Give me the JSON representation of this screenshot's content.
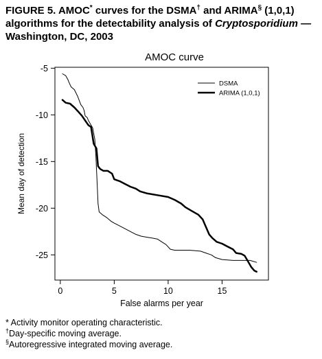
{
  "figure": {
    "title_part1": "FIGURE 5. AMOC",
    "title_sym1": "*",
    "title_part2": " curves for the DSMA",
    "title_sym2": "†",
    "title_part3": " and ARIMA",
    "title_sym3": "§",
    "title_part4": " (1,0,1) algorithms for the detectability analysis of ",
    "title_italic": "Cryptosporidium",
    "title_part5": " — Washington, DC, 2003"
  },
  "chart_data": {
    "type": "line",
    "title": "AMOC curve",
    "xlabel": "False alarms per year",
    "ylabel": "Mean day of detection",
    "xlim": [
      -0.5,
      19.3
    ],
    "ylim": [
      -27.7,
      -4.9
    ],
    "xticks": [
      0,
      5,
      10,
      15
    ],
    "yticks": [
      -5,
      -10,
      -15,
      -20,
      -25
    ],
    "grid": false,
    "legend": "top-right",
    "series": [
      {
        "name": "DSMA",
        "color": "#000000",
        "width": 1,
        "points": [
          [
            0.2,
            -5.6
          ],
          [
            0.5,
            -5.8
          ],
          [
            0.7,
            -6.2
          ],
          [
            0.8,
            -6.5
          ],
          [
            1.0,
            -7.0
          ],
          [
            1.3,
            -7.3
          ],
          [
            1.6,
            -8.0
          ],
          [
            1.9,
            -8.9
          ],
          [
            2.1,
            -9.2
          ],
          [
            2.2,
            -9.5
          ],
          [
            2.3,
            -10.1
          ],
          [
            2.5,
            -10.3
          ],
          [
            2.6,
            -10.6
          ],
          [
            2.8,
            -11.0
          ],
          [
            3.0,
            -11.4
          ],
          [
            3.1,
            -12.0
          ],
          [
            3.2,
            -12.6
          ],
          [
            3.3,
            -14.5
          ],
          [
            3.4,
            -17.0
          ],
          [
            3.5,
            -19.5
          ],
          [
            3.6,
            -20.4
          ],
          [
            3.9,
            -20.7
          ],
          [
            4.3,
            -21.0
          ],
          [
            4.7,
            -21.4
          ],
          [
            5.0,
            -21.6
          ],
          [
            5.5,
            -21.9
          ],
          [
            6.0,
            -22.2
          ],
          [
            6.5,
            -22.5
          ],
          [
            7.0,
            -22.8
          ],
          [
            7.5,
            -23.0
          ],
          [
            8.0,
            -23.1
          ],
          [
            8.5,
            -23.2
          ],
          [
            9.0,
            -23.3
          ],
          [
            9.4,
            -23.6
          ],
          [
            9.8,
            -23.9
          ],
          [
            10.2,
            -24.4
          ],
          [
            10.6,
            -24.5
          ],
          [
            11.0,
            -24.5
          ],
          [
            12.0,
            -24.5
          ],
          [
            13.0,
            -24.6
          ],
          [
            13.5,
            -24.8
          ],
          [
            14.0,
            -25.0
          ],
          [
            14.4,
            -25.3
          ],
          [
            15.0,
            -25.5
          ],
          [
            16.0,
            -25.6
          ],
          [
            17.0,
            -25.6
          ],
          [
            17.6,
            -25.6
          ],
          [
            18.2,
            -25.8
          ]
        ]
      },
      {
        "name": "ARIMA (1,0,1)",
        "color": "#000000",
        "width": 2.5,
        "points": [
          [
            0.2,
            -8.4
          ],
          [
            0.5,
            -8.7
          ],
          [
            0.9,
            -8.8
          ],
          [
            1.3,
            -9.2
          ],
          [
            1.7,
            -9.7
          ],
          [
            2.0,
            -10.1
          ],
          [
            2.3,
            -10.6
          ],
          [
            2.6,
            -11.1
          ],
          [
            2.85,
            -11.3
          ],
          [
            3.0,
            -12.4
          ],
          [
            3.1,
            -13.1
          ],
          [
            3.2,
            -13.3
          ],
          [
            3.35,
            -13.6
          ],
          [
            3.5,
            -15.5
          ],
          [
            3.7,
            -15.8
          ],
          [
            4.0,
            -16.0
          ],
          [
            4.4,
            -16.0
          ],
          [
            4.8,
            -16.3
          ],
          [
            5.0,
            -16.9
          ],
          [
            5.5,
            -17.1
          ],
          [
            6.0,
            -17.4
          ],
          [
            6.5,
            -17.7
          ],
          [
            7.0,
            -17.9
          ],
          [
            7.4,
            -18.2
          ],
          [
            8.0,
            -18.4
          ],
          [
            9.0,
            -18.6
          ],
          [
            10.0,
            -18.8
          ],
          [
            10.6,
            -19.1
          ],
          [
            11.2,
            -19.5
          ],
          [
            11.6,
            -19.9
          ],
          [
            12.2,
            -20.3
          ],
          [
            12.8,
            -20.7
          ],
          [
            13.2,
            -21.2
          ],
          [
            13.5,
            -22.0
          ],
          [
            13.8,
            -22.8
          ],
          [
            14.1,
            -23.2
          ],
          [
            14.5,
            -23.6
          ],
          [
            15.0,
            -23.8
          ],
          [
            15.5,
            -24.1
          ],
          [
            16.0,
            -24.4
          ],
          [
            16.3,
            -24.8
          ],
          [
            16.8,
            -24.9
          ],
          [
            17.1,
            -25.1
          ],
          [
            17.4,
            -25.7
          ],
          [
            17.7,
            -26.3
          ],
          [
            18.0,
            -26.7
          ],
          [
            18.2,
            -26.8
          ]
        ]
      }
    ]
  },
  "footnotes": [
    {
      "sym": "*",
      "text": " Activity monitor operating characteristic."
    },
    {
      "sym": "†",
      "text": "Day-specific moving average."
    },
    {
      "sym": "§",
      "text": "Autoregressive integrated moving average."
    }
  ]
}
